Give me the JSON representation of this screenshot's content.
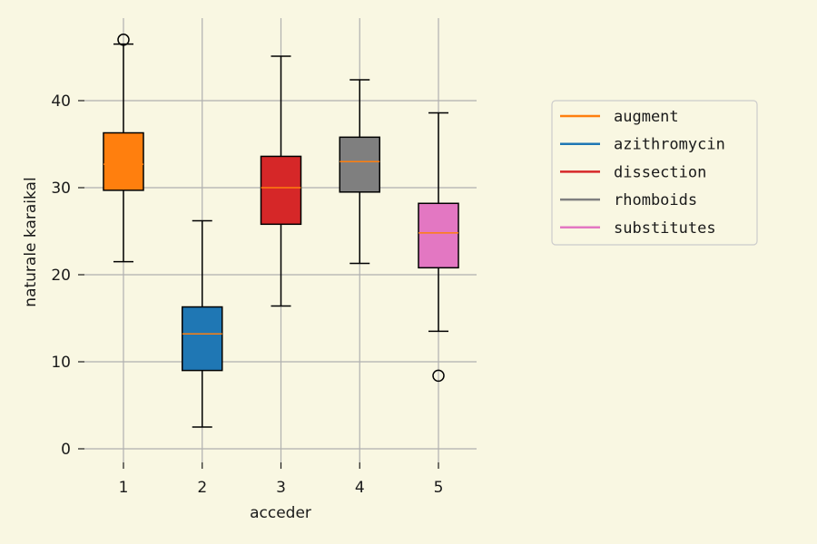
{
  "chart_data": {
    "type": "boxplot",
    "xlabel": "acceder",
    "ylabel": "naturale karaikal",
    "ylim": [
      0,
      49
    ],
    "yticks": [
      0,
      10,
      20,
      30,
      40
    ],
    "categories": [
      "1",
      "2",
      "3",
      "4",
      "5"
    ],
    "grid": true,
    "legend_placement": "right",
    "series": [
      {
        "name": "augment",
        "color": "#ff7f0e",
        "whisker_low": 21.5,
        "q1": 29.7,
        "median": 32.7,
        "q3": 36.3,
        "whisker_high": 46.5,
        "outliers": [
          47.0
        ]
      },
      {
        "name": "azithromycin",
        "color": "#1f77b4",
        "whisker_low": 2.5,
        "q1": 9.0,
        "median": 13.2,
        "q3": 16.3,
        "whisker_high": 26.2,
        "outliers": []
      },
      {
        "name": "dissection",
        "color": "#d62728",
        "whisker_low": 16.4,
        "q1": 25.8,
        "median": 30.0,
        "q3": 33.6,
        "whisker_high": 45.1,
        "outliers": []
      },
      {
        "name": "rhomboids",
        "color": "#7f7f7f",
        "whisker_low": 21.3,
        "q1": 29.5,
        "median": 33.0,
        "q3": 35.8,
        "whisker_high": 42.4,
        "outliers": []
      },
      {
        "name": "substitutes",
        "color": "#e377c2",
        "whisker_low": 13.5,
        "q1": 20.8,
        "median": 24.8,
        "q3": 28.2,
        "whisker_high": 38.6,
        "outliers": [
          8.4
        ]
      }
    ],
    "median_line_color": "#ff7f0e",
    "grid_color": "#b0b0b0",
    "background_color": "#f9f7e2"
  }
}
